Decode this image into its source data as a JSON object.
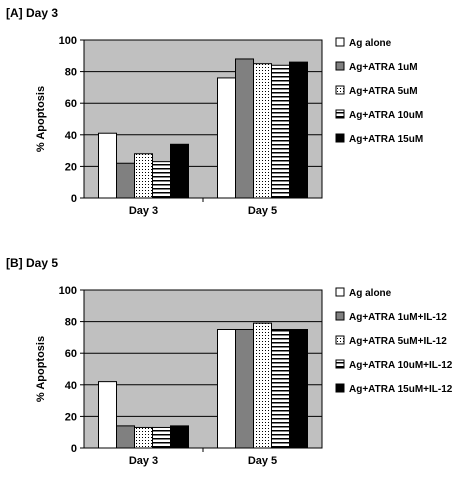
{
  "chart_data": [
    {
      "type": "bar",
      "title": "[A] Day 3",
      "ylabel": "% Apoptosis",
      "ylim": [
        0,
        100
      ],
      "yticks": [
        "0",
        "20",
        "40",
        "60",
        "80",
        "100"
      ],
      "categories": [
        "Day 3",
        "Day 5"
      ],
      "grid": true,
      "legend_position": "right",
      "plot_background": "#c0c0c0",
      "series": [
        {
          "name": "Ag alone",
          "values": [
            41,
            76
          ],
          "pattern": "white"
        },
        {
          "name": "Ag+ATRA 1uM",
          "values": [
            22,
            88
          ],
          "pattern": "gray"
        },
        {
          "name": "Ag+ATRA 5uM",
          "values": [
            28,
            85
          ],
          "pattern": "dots"
        },
        {
          "name": "Ag+ATRA 10uM",
          "values": [
            23,
            84
          ],
          "pattern": "hlines"
        },
        {
          "name": "Ag+ATRA 15uM",
          "values": [
            34,
            86
          ],
          "pattern": "black"
        }
      ]
    },
    {
      "type": "bar",
      "title": "[B] Day 5",
      "ylabel": "% Apoptosis",
      "ylim": [
        0,
        100
      ],
      "yticks": [
        "0",
        "20",
        "40",
        "60",
        "80",
        "100"
      ],
      "categories": [
        "Day 3",
        "Day 5"
      ],
      "grid": true,
      "legend_position": "right",
      "plot_background": "#c0c0c0",
      "series": [
        {
          "name": "Ag alone",
          "values": [
            42,
            75
          ],
          "pattern": "white"
        },
        {
          "name": "Ag+ATRA 1uM+IL-12",
          "values": [
            14,
            75
          ],
          "pattern": "gray"
        },
        {
          "name": "Ag+ATRA 5uM+IL-12",
          "values": [
            13,
            79
          ],
          "pattern": "dots"
        },
        {
          "name": "Ag+ATRA 10uM+IL-12",
          "values": [
            13,
            75
          ],
          "pattern": "hlines"
        },
        {
          "name": "Ag+ATRA 15uM+IL-12",
          "values": [
            14,
            75
          ],
          "pattern": "black"
        }
      ]
    }
  ]
}
